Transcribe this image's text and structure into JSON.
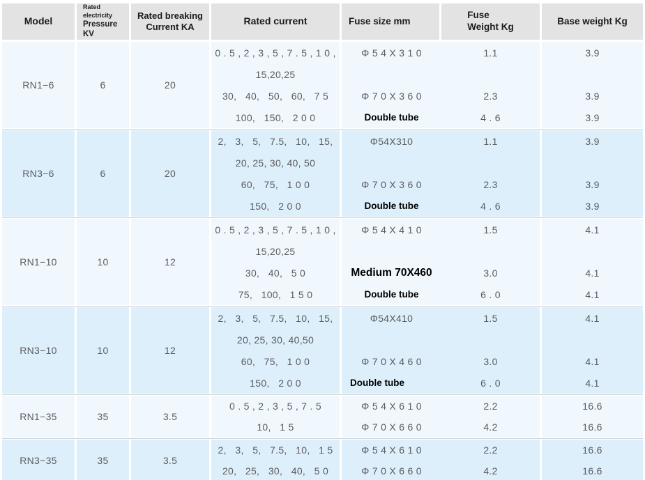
{
  "colors": {
    "header_bg": "#e4e3e3",
    "row_light": "#f0f8fd",
    "row_blue": "#ddeffa",
    "divider": "#cdd3d7",
    "data_text": "#5a5c5f",
    "header_text": "#1b1b1b"
  },
  "header": {
    "model": "Model",
    "pressure": {
      "small": "Rated electricity",
      "line1": "Pressure",
      "line2": "KV"
    },
    "breaking": {
      "line1": "Rated breaking",
      "line2": "Current KA"
    },
    "rated_current": "Rated current",
    "fuse_size": "Fuse size mm",
    "fuse_weight": {
      "line1": "Fuse",
      "line2": "Weight Kg"
    },
    "base_weight": "Base weight Kg"
  },
  "rows": [
    {
      "model": "RN1−6",
      "kv": "6",
      "ka": "20",
      "lines": [
        {
          "current": "0 . 5 , 2 , 3 , 5 , 7 . 5 , 1 0 ,",
          "fuse": "Φ 5 4 X 3 1 0",
          "fuse_style": "normal",
          "weight": "1.1",
          "base": "3.9"
        },
        {
          "current": "15,20,25",
          "fuse": "",
          "fuse_style": "normal",
          "weight": "",
          "base": ""
        },
        {
          "current": "30,   40,   50,   60,   7 5",
          "fuse": "Φ 7 0 X 3 6 0",
          "fuse_style": "normal",
          "weight": "2.3",
          "base": "3.9"
        },
        {
          "current": "100,   150,   2 0 0",
          "fuse": "Double tube",
          "fuse_style": "bold",
          "weight": "4 . 6",
          "base": "3.9"
        }
      ]
    },
    {
      "model": "RN3−6",
      "kv": "6",
      "ka": "20",
      "lines": [
        {
          "current": "2,   3,   5,   7.5,   10,   15,",
          "fuse": "Φ54X310",
          "fuse_style": "normal",
          "weight": "1.1",
          "base": "3.9"
        },
        {
          "current": "20, 25, 30, 40, 50",
          "fuse": "",
          "fuse_style": "normal",
          "weight": "",
          "base": ""
        },
        {
          "current": "60,   75,   1 0 0",
          "fuse": "Φ 7 0 X 3 6 0",
          "fuse_style": "normal",
          "weight": "2.3",
          "base": "3.9"
        },
        {
          "current": "150,   2 0 0",
          "fuse": "Double tube",
          "fuse_style": "bold",
          "weight": "4 . 6",
          "base": "3.9"
        }
      ]
    },
    {
      "model": "RN1−10",
      "kv": "10",
      "ka": "12",
      "lines": [
        {
          "current": "0 . 5 , 2 , 3 , 5 , 7 . 5 , 1 0 ,",
          "fuse": "Φ 5 4 X 4 1 0",
          "fuse_style": "normal",
          "weight": "1.5",
          "base": "4.1"
        },
        {
          "current": "15,20,25",
          "fuse": "",
          "fuse_style": "normal",
          "weight": "",
          "base": ""
        },
        {
          "current": "30,   40,   5 0",
          "fuse": "Medium 70X460",
          "fuse_style": "bold-large",
          "weight": "3.0",
          "base": "4.1"
        },
        {
          "current": "75,   100,   1 5 0",
          "fuse": "Double tube",
          "fuse_style": "bold",
          "weight": "6 . 0",
          "base": "4.1"
        }
      ]
    },
    {
      "model": "RN3−10",
      "kv": "10",
      "ka": "12",
      "lines": [
        {
          "current": "2,   3,   5,   7.5,   10,   15,",
          "fuse": "Φ54X410",
          "fuse_style": "normal",
          "weight": "1.5",
          "base": "4.1"
        },
        {
          "current": "20, 25, 30, 40,50",
          "fuse": "",
          "fuse_style": "normal",
          "weight": "",
          "base": ""
        },
        {
          "current": "60,   75,   1 0 0",
          "fuse": "Φ 7 0 X 4 6 0",
          "fuse_style": "normal",
          "weight": "3.0",
          "base": "4.1"
        },
        {
          "current": "150,   2 0 0",
          "fuse": "Double tube",
          "fuse_style": "bold-left",
          "weight": "6 . 0",
          "base": "4.1"
        }
      ]
    },
    {
      "model": "RN1−35",
      "kv": "35",
      "ka": "3.5",
      "lines": [
        {
          "current": "0 . 5 , 2 , 3 , 5 , 7 . 5",
          "fuse": "Φ 5 4 X 6 1 0",
          "fuse_style": "normal",
          "weight": "2.2",
          "base": "16.6"
        },
        {
          "current": "10,   1 5",
          "fuse": "Φ 7 0 X 6 6 0",
          "fuse_style": "normal",
          "weight": "4.2",
          "base": "16.6"
        }
      ]
    },
    {
      "model": "RN3−35",
      "kv": "35",
      "ka": "3.5",
      "lines": [
        {
          "current": "2,   3,   5,   7.5,   10,   1 5",
          "fuse": "Φ 5 4 X 6 1 0",
          "fuse_style": "normal",
          "weight": "2.2",
          "base": "16.6"
        },
        {
          "current": "20,   25,   30,   40,   5 0",
          "fuse": "Φ 7 0 X 6 6 0",
          "fuse_style": "normal",
          "weight": "4.2",
          "base": "16.6"
        }
      ]
    }
  ]
}
